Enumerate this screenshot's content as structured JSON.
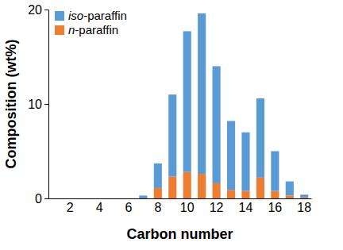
{
  "chart_data": {
    "type": "bar",
    "stacked": true,
    "legend": "upper left",
    "xlabel": "Carbon number",
    "ylabel": "Composition (wt%)",
    "categories": [
      null,
      2,
      null,
      4,
      null,
      6,
      null,
      8,
      null,
      10,
      null,
      12,
      null,
      14,
      null,
      16,
      null,
      18
    ],
    "series": [
      {
        "name": "n-paraffin",
        "color": "#ed7d31",
        "values": [
          0,
          0,
          0,
          0,
          0,
          0,
          0,
          1.1,
          2.3,
          2.8,
          2.6,
          1.6,
          0.9,
          0.8,
          2.2,
          0.8,
          0.3,
          0.1
        ]
      },
      {
        "name": "iso-paraffin",
        "color": "#5b9bd5",
        "values": [
          0,
          0,
          0,
          0,
          0,
          0,
          0.3,
          2.6,
          8.7,
          14.9,
          17.0,
          12.4,
          7.3,
          6.2,
          8.4,
          4.2,
          1.5,
          0.3
        ]
      }
    ],
    "ylim": [
      0,
      20
    ],
    "yticks": [
      0,
      10,
      20
    ]
  }
}
